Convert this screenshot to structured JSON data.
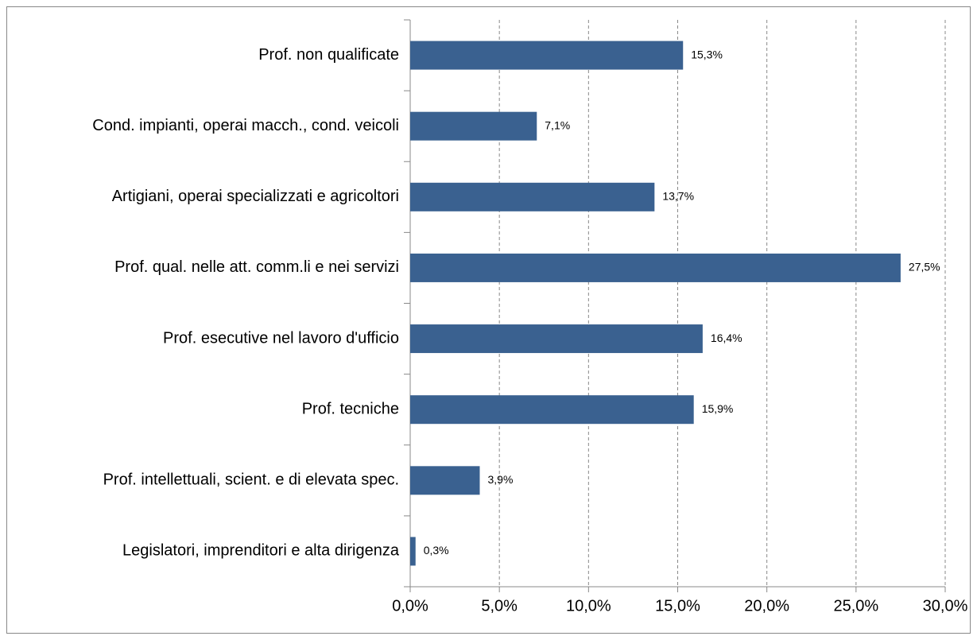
{
  "chart_data": {
    "type": "hbar",
    "categories": [
      "Prof. non qualificate",
      "Cond. impianti, operai macch., cond. veicoli",
      "Artigiani, operai specializzati e agricoltori",
      "Prof. qual. nelle att. comm.li e nei servizi",
      "Prof. esecutive nel lavoro d'ufficio",
      "Prof. tecniche",
      "Prof. intellettuali, scient. e di elevata spec.",
      "Legislatori, imprenditori e alta dirigenza"
    ],
    "values": [
      15.3,
      7.1,
      13.7,
      27.5,
      16.4,
      15.9,
      3.9,
      0.3
    ],
    "value_labels": [
      "15,3%",
      "7,1%",
      "13,7%",
      "27,5%",
      "16,4%",
      "15,9%",
      "3,9%",
      "0,3%"
    ],
    "color": "#3a6190",
    "xlim": [
      0,
      30
    ],
    "xticks": [
      {
        "value": 0,
        "label": "0,0%"
      },
      {
        "value": 5,
        "label": "5,0%"
      },
      {
        "value": 10,
        "label": "10,0%"
      },
      {
        "value": 15,
        "label": "15,0%"
      },
      {
        "value": 20,
        "label": "20,0%"
      },
      {
        "value": 25,
        "label": "25,0%"
      },
      {
        "value": 30,
        "label": "30,0%"
      }
    ],
    "grid": true
  }
}
